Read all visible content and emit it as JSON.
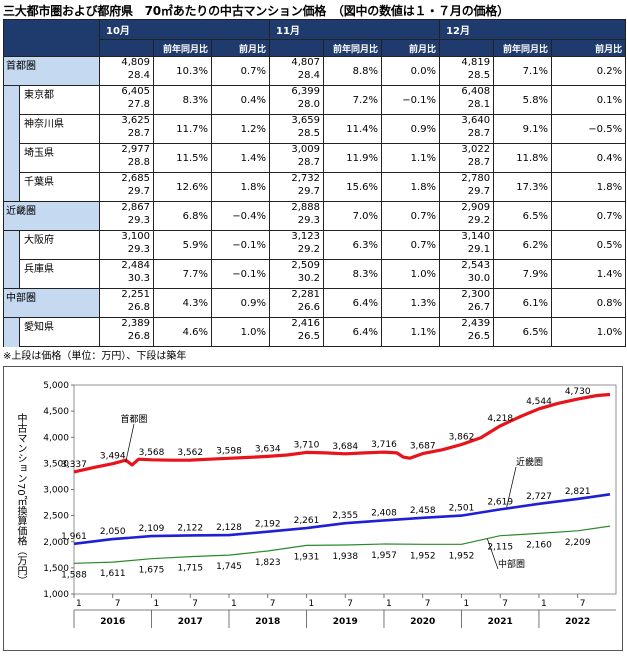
{
  "title": "三大都市圏および都府県　70㎡あたりの中古マンション価格　（図中の数値は１・７月の価格）",
  "table": {
    "months": [
      "10月",
      "11月",
      "12月"
    ],
    "sub_headers": [
      "前年同月比",
      "前月比"
    ],
    "rows": [
      {
        "region": "首都圏",
        "name": "",
        "cells": [
          [
            "4,809",
            "28.4",
            "10.3%",
            "0.7%"
          ],
          [
            "4,807",
            "28.4",
            "8.8%",
            "0.0%"
          ],
          [
            "4,819",
            "28.5",
            "7.1%",
            "0.2%"
          ]
        ]
      },
      {
        "region": "",
        "name": "東京都",
        "cells": [
          [
            "6,405",
            "27.8",
            "8.3%",
            "0.4%"
          ],
          [
            "6,399",
            "28.0",
            "7.2%",
            "−0.1%"
          ],
          [
            "6,408",
            "28.1",
            "5.8%",
            "0.1%"
          ]
        ]
      },
      {
        "region": "",
        "name": "神奈川県",
        "cells": [
          [
            "3,625",
            "28.7",
            "11.7%",
            "1.2%"
          ],
          [
            "3,659",
            "28.5",
            "11.4%",
            "0.9%"
          ],
          [
            "3,640",
            "28.7",
            "9.1%",
            "−0.5%"
          ]
        ]
      },
      {
        "region": "",
        "name": "埼玉県",
        "cells": [
          [
            "2,977",
            "28.8",
            "11.5%",
            "1.4%"
          ],
          [
            "3,009",
            "28.7",
            "11.9%",
            "1.1%"
          ],
          [
            "3,022",
            "28.7",
            "11.8%",
            "0.4%"
          ]
        ]
      },
      {
        "region": "",
        "name": "千葉県",
        "cells": [
          [
            "2,685",
            "29.7",
            "12.6%",
            "1.8%"
          ],
          [
            "2,732",
            "29.7",
            "15.6%",
            "1.8%"
          ],
          [
            "2,780",
            "29.7",
            "17.3%",
            "1.8%"
          ]
        ]
      },
      {
        "region": "近畿圏",
        "name": "",
        "cells": [
          [
            "2,867",
            "29.3",
            "6.8%",
            "−0.4%"
          ],
          [
            "2,888",
            "29.3",
            "7.0%",
            "0.7%"
          ],
          [
            "2,909",
            "29.2",
            "6.5%",
            "0.7%"
          ]
        ]
      },
      {
        "region": "",
        "name": "大阪府",
        "cells": [
          [
            "3,100",
            "29.3",
            "5.9%",
            "−0.1%"
          ],
          [
            "3,123",
            "29.2",
            "6.3%",
            "0.7%"
          ],
          [
            "3,140",
            "29.1",
            "6.2%",
            "0.5%"
          ]
        ]
      },
      {
        "region": "",
        "name": "兵庫県",
        "cells": [
          [
            "2,484",
            "30.3",
            "7.7%",
            "−0.1%"
          ],
          [
            "2,509",
            "30.2",
            "8.3%",
            "1.0%"
          ],
          [
            "2,543",
            "30.0",
            "7.9%",
            "1.4%"
          ]
        ]
      },
      {
        "region": "中部圏",
        "name": "",
        "cells": [
          [
            "2,251",
            "26.8",
            "4.3%",
            "0.9%"
          ],
          [
            "2,281",
            "26.6",
            "6.4%",
            "1.3%"
          ],
          [
            "2,300",
            "26.7",
            "6.1%",
            "0.8%"
          ]
        ]
      },
      {
        "region": "",
        "name": "愛知県",
        "cells": [
          [
            "2,389",
            "26.8",
            "4.6%",
            "1.0%"
          ],
          [
            "2,416",
            "26.5",
            "6.4%",
            "1.1%"
          ],
          [
            "2,439",
            "26.5",
            "6.5%",
            "1.0%"
          ]
        ]
      }
    ]
  },
  "note": "※上段は価格（単位：万円）、下段は築年",
  "chart_data": {
    "type": "line",
    "ylabel": "中古マンション70㎡換算価格（万円）",
    "ylim": [
      1000,
      5000
    ],
    "yticks": [
      "1,000",
      "1,500",
      "2,000",
      "2,500",
      "3,000",
      "3,500",
      "4,000",
      "4,500",
      "5,000"
    ],
    "x_start": "2016-01",
    "x_end": "2022-12",
    "month_ticks": [
      "1",
      "7",
      "1",
      "7",
      "1",
      "7",
      "1",
      "7",
      "1",
      "7",
      "1",
      "7",
      "1",
      "7"
    ],
    "years": [
      "2016",
      "2017",
      "2018",
      "2019",
      "2020",
      "2021",
      "2022"
    ],
    "colors": {
      "首都圏": "#e8141b",
      "近畿圏": "#1f1fd6",
      "中部圏": "#2a8a2a"
    },
    "series": [
      {
        "name": "首都圏",
        "labels": [
          {
            "x": "2016-01",
            "value": 3337
          },
          {
            "x": "2016-07",
            "value": 3494
          },
          {
            "x": "2017-01",
            "value": 3568
          },
          {
            "x": "2017-07",
            "value": 3562
          },
          {
            "x": "2018-01",
            "value": 3598
          },
          {
            "x": "2018-07",
            "value": 3634
          },
          {
            "x": "2019-01",
            "value": 3710
          },
          {
            "x": "2019-07",
            "value": 3684
          },
          {
            "x": "2020-01",
            "value": 3716
          },
          {
            "x": "2020-07",
            "value": 3687
          },
          {
            "x": "2021-01",
            "value": 3862
          },
          {
            "x": "2021-07",
            "value": 4218
          },
          {
            "x": "2022-01",
            "value": 4544
          },
          {
            "x": "2022-07",
            "value": 4730
          }
        ],
        "points": [
          [
            "2016-01",
            3337
          ],
          [
            "2016-04",
            3420
          ],
          [
            "2016-07",
            3494
          ],
          [
            "2016-09",
            3560
          ],
          [
            "2016-10",
            3470
          ],
          [
            "2016-11",
            3580
          ],
          [
            "2017-01",
            3568
          ],
          [
            "2017-04",
            3560
          ],
          [
            "2017-07",
            3562
          ],
          [
            "2017-10",
            3580
          ],
          [
            "2018-01",
            3598
          ],
          [
            "2018-04",
            3615
          ],
          [
            "2018-07",
            3634
          ],
          [
            "2018-10",
            3660
          ],
          [
            "2019-01",
            3710
          ],
          [
            "2019-04",
            3700
          ],
          [
            "2019-07",
            3684
          ],
          [
            "2019-10",
            3700
          ],
          [
            "2020-01",
            3716
          ],
          [
            "2020-03",
            3700
          ],
          [
            "2020-04",
            3620
          ],
          [
            "2020-05",
            3600
          ],
          [
            "2020-07",
            3687
          ],
          [
            "2020-10",
            3760
          ],
          [
            "2021-01",
            3862
          ],
          [
            "2021-04",
            3990
          ],
          [
            "2021-07",
            4218
          ],
          [
            "2021-10",
            4390
          ],
          [
            "2022-01",
            4544
          ],
          [
            "2022-04",
            4650
          ],
          [
            "2022-07",
            4730
          ],
          [
            "2022-10",
            4800
          ],
          [
            "2022-12",
            4819
          ]
        ]
      },
      {
        "name": "近畿圏",
        "labels": [
          {
            "x": "2016-01",
            "value": 1961
          },
          {
            "x": "2016-07",
            "value": 2050
          },
          {
            "x": "2017-01",
            "value": 2109
          },
          {
            "x": "2017-07",
            "value": 2122
          },
          {
            "x": "2018-01",
            "value": 2128
          },
          {
            "x": "2018-07",
            "value": 2192
          },
          {
            "x": "2019-01",
            "value": 2261
          },
          {
            "x": "2019-07",
            "value": 2355
          },
          {
            "x": "2020-01",
            "value": 2408
          },
          {
            "x": "2020-07",
            "value": 2458
          },
          {
            "x": "2021-01",
            "value": 2501
          },
          {
            "x": "2021-07",
            "value": 2619
          },
          {
            "x": "2022-01",
            "value": 2727
          },
          {
            "x": "2022-07",
            "value": 2821
          }
        ],
        "points": [
          [
            "2016-01",
            1961
          ],
          [
            "2016-07",
            2050
          ],
          [
            "2017-01",
            2109
          ],
          [
            "2017-07",
            2122
          ],
          [
            "2018-01",
            2128
          ],
          [
            "2018-07",
            2192
          ],
          [
            "2019-01",
            2261
          ],
          [
            "2019-07",
            2355
          ],
          [
            "2020-01",
            2408
          ],
          [
            "2020-07",
            2458
          ],
          [
            "2021-01",
            2501
          ],
          [
            "2021-07",
            2619
          ],
          [
            "2022-01",
            2727
          ],
          [
            "2022-07",
            2821
          ],
          [
            "2022-12",
            2909
          ]
        ]
      },
      {
        "name": "中部圏",
        "labels": [
          {
            "x": "2016-01",
            "value": 1588
          },
          {
            "x": "2016-07",
            "value": 1611
          },
          {
            "x": "2017-01",
            "value": 1675
          },
          {
            "x": "2017-07",
            "value": 1715
          },
          {
            "x": "2018-01",
            "value": 1745
          },
          {
            "x": "2018-07",
            "value": 1823
          },
          {
            "x": "2019-01",
            "value": 1931
          },
          {
            "x": "2019-07",
            "value": 1938
          },
          {
            "x": "2020-01",
            "value": 1957
          },
          {
            "x": "2020-07",
            "value": 1952
          },
          {
            "x": "2021-01",
            "value": 1952
          },
          {
            "x": "2021-07",
            "value": 2115
          },
          {
            "x": "2022-01",
            "value": 2160
          },
          {
            "x": "2022-07",
            "value": 2209
          }
        ],
        "points": [
          [
            "2016-01",
            1588
          ],
          [
            "2016-07",
            1611
          ],
          [
            "2017-01",
            1675
          ],
          [
            "2017-07",
            1715
          ],
          [
            "2018-01",
            1745
          ],
          [
            "2018-07",
            1823
          ],
          [
            "2019-01",
            1931
          ],
          [
            "2019-07",
            1938
          ],
          [
            "2020-01",
            1957
          ],
          [
            "2020-07",
            1952
          ],
          [
            "2021-01",
            1952
          ],
          [
            "2021-07",
            2115
          ],
          [
            "2022-01",
            2160
          ],
          [
            "2022-07",
            2209
          ],
          [
            "2022-12",
            2300
          ]
        ]
      }
    ]
  }
}
